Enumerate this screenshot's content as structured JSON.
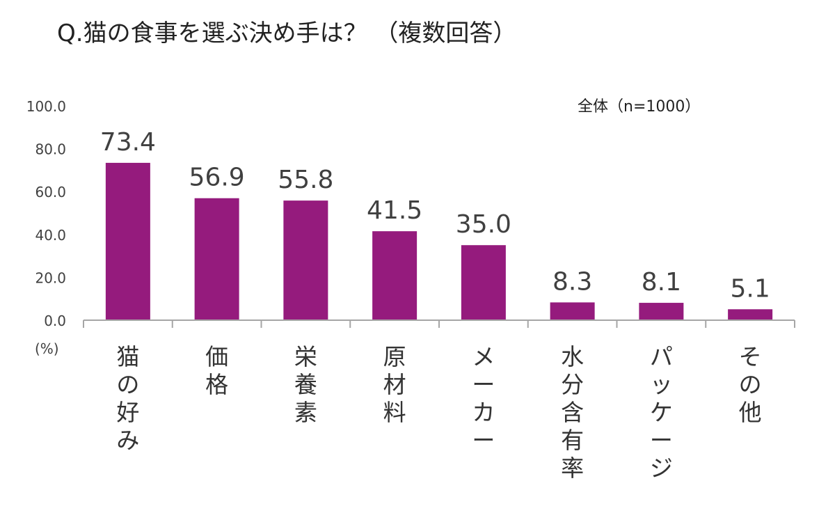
{
  "chart_data": {
    "type": "bar",
    "title": "Q.猫の食事を選ぶ決め手は？ （複数回答）",
    "annotation": "全体（n=1000）",
    "ylabel": "(%)",
    "ylim": [
      0,
      100
    ],
    "yticks": [
      "100.0",
      "80.0",
      "60.0",
      "40.0",
      "20.0",
      "0.0"
    ],
    "ytick_values": [
      100,
      80,
      60,
      40,
      20,
      0
    ],
    "categories": [
      "猫の好み",
      "価格",
      "栄養素",
      "原材料",
      "メーカー",
      "水分含有率",
      "パッケージ",
      "その他"
    ],
    "values": [
      73.4,
      56.9,
      55.8,
      41.5,
      35.0,
      8.3,
      8.1,
      5.1
    ],
    "value_labels": [
      "73.4",
      "56.9",
      "55.8",
      "41.5",
      "35.0",
      "8.3",
      "8.1",
      "5.1"
    ],
    "bar_color": "#951b7d",
    "axis_color": "#a6a6a6",
    "grid": false
  }
}
